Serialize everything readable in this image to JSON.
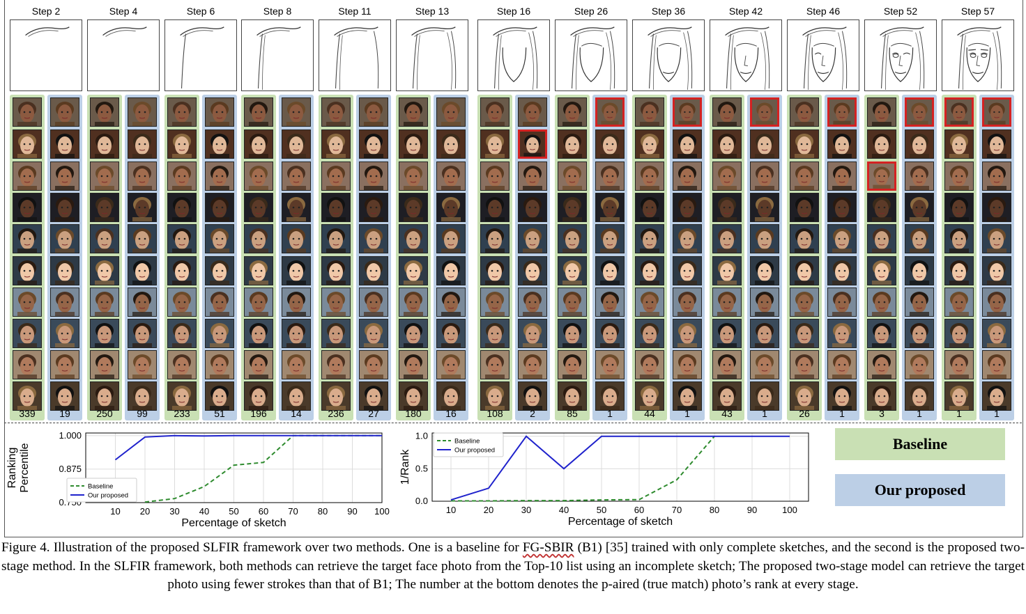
{
  "figure": {
    "steps": [
      {
        "label": "Step 2",
        "baseline_rank": "339",
        "proposed_rank": "19"
      },
      {
        "label": "Step 4",
        "baseline_rank": "250",
        "proposed_rank": "99"
      },
      {
        "label": "Step 6",
        "baseline_rank": "233",
        "proposed_rank": "51"
      },
      {
        "label": "Step 8",
        "baseline_rank": "196",
        "proposed_rank": "14"
      },
      {
        "label": "Step 11",
        "baseline_rank": "236",
        "proposed_rank": "27"
      },
      {
        "label": "Step 13",
        "baseline_rank": "180",
        "proposed_rank": "16"
      },
      {
        "label": "Step 16",
        "baseline_rank": "108",
        "proposed_rank": "2"
      },
      {
        "label": "Step 26",
        "baseline_rank": "85",
        "proposed_rank": "1"
      },
      {
        "label": "Step 36",
        "baseline_rank": "44",
        "proposed_rank": "1"
      },
      {
        "label": "Step 42",
        "baseline_rank": "43",
        "proposed_rank": "1"
      },
      {
        "label": "Step 46",
        "baseline_rank": "26",
        "proposed_rank": "1"
      },
      {
        "label": "Step 52",
        "baseline_rank": "3",
        "proposed_rank": "1"
      },
      {
        "label": "Step 57",
        "baseline_rank": "1",
        "proposed_rank": "1"
      }
    ],
    "target_match_positions": [
      {
        "step": "Step 16",
        "method": "proposed",
        "row": 2
      },
      {
        "step": "Step 26",
        "method": "proposed",
        "row": 1
      },
      {
        "step": "Step 36",
        "method": "proposed",
        "row": 1
      },
      {
        "step": "Step 42",
        "method": "proposed",
        "row": 1
      },
      {
        "step": "Step 46",
        "method": "proposed",
        "row": 1
      },
      {
        "step": "Step 52",
        "method": "baseline",
        "row": 3
      },
      {
        "step": "Step 52",
        "method": "proposed",
        "row": 1
      },
      {
        "step": "Step 57",
        "method": "baseline",
        "row": 1
      },
      {
        "step": "Step 57",
        "method": "proposed",
        "row": 1
      }
    ],
    "legend": {
      "baseline": "Baseline",
      "proposed": "Our proposed",
      "baseline_color": "#c9e0b4",
      "proposed_color": "#bccfe6"
    }
  },
  "chart_data": [
    {
      "type": "line",
      "xlabel": "Percentage of sketch",
      "ylabel": "Ranking\nPercentile",
      "x_ticks": [
        "10",
        "20",
        "30",
        "40",
        "50",
        "60",
        "70",
        "80",
        "90",
        "100"
      ],
      "y_ticks": [
        "0.750",
        "0.875",
        "1.000"
      ],
      "xlim": [
        0,
        100
      ],
      "ylim": [
        0.75,
        1.01
      ],
      "grid": true,
      "legend_position": "lower-left",
      "series": [
        {
          "name": "Baseline",
          "style": "dashed",
          "color": "#2e8b2e",
          "x": [
            20,
            30,
            40,
            50,
            60,
            70,
            80,
            90,
            100
          ],
          "y": [
            0.752,
            0.765,
            0.81,
            0.89,
            0.9,
            1.0,
            1.0,
            1.0,
            1.0
          ]
        },
        {
          "name": "Our proposed",
          "style": "solid",
          "color": "#1f22cc",
          "x": [
            10,
            20,
            30,
            40,
            50,
            60,
            70,
            80,
            90,
            100
          ],
          "y": [
            0.91,
            0.995,
            1.0,
            0.999,
            1.0,
            1.0,
            1.0,
            1.0,
            1.0,
            1.0
          ]
        }
      ]
    },
    {
      "type": "line",
      "xlabel": "Percentage of sketch",
      "ylabel": "1/Rank",
      "x_ticks": [
        "10",
        "20",
        "30",
        "40",
        "50",
        "60",
        "70",
        "80",
        "90",
        "100"
      ],
      "y_ticks": [
        "0.0",
        "0.5",
        "1.0"
      ],
      "xlim": [
        5,
        105
      ],
      "ylim": [
        0,
        1.05
      ],
      "grid": true,
      "legend_position": "top-left",
      "series": [
        {
          "name": "Baseline",
          "style": "dashed",
          "color": "#2e8b2e",
          "x": [
            10,
            20,
            30,
            40,
            50,
            60,
            70,
            80
          ],
          "y": [
            0.005,
            0.005,
            0.01,
            0.01,
            0.02,
            0.025,
            0.33,
            1.0
          ]
        },
        {
          "name": "Our proposed",
          "style": "solid",
          "color": "#1f22cc",
          "x": [
            10,
            20,
            30,
            40,
            50,
            60,
            70,
            80,
            90,
            100
          ],
          "y": [
            0.02,
            0.2,
            1.0,
            0.5,
            1.0,
            1.0,
            1.0,
            1.0,
            1.0,
            1.0
          ]
        }
      ]
    }
  ],
  "caption": {
    "part1": "Figure 4. Illustration of the proposed SLFIR framework over two methods. One is a baseline for ",
    "fgsbir": "FG-SBIR",
    "part2": " (B1) [35] trained with only complete sketches, and the second is the proposed two-stage method. In the SLFIR framework, both methods can retrieve the target face photo from the Top-10 list using an incomplete sketch; The proposed two-stage model can retrieve the target photo using fewer strokes than that of B1; The number at the bottom denotes the p-aired (true match) photo’s rank at every stage."
  }
}
